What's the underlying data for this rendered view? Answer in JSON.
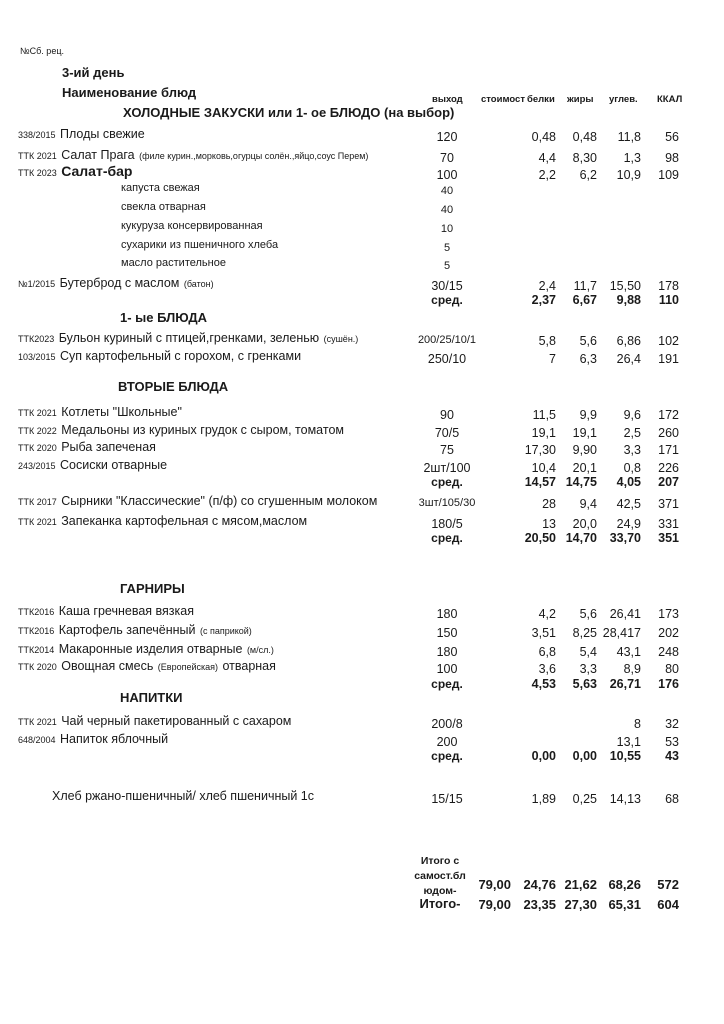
{
  "header": {
    "recipe_no_label": "№Сб. рец.",
    "day": "3-ий день",
    "dish_name_label": "Наименование  блюд",
    "columns": [
      "выход",
      "стоимост",
      "белки",
      "жиры",
      "углев.",
      "ККАЛ"
    ]
  },
  "rows": [
    {
      "type": "section",
      "name": "ХОЛОДНЫЕ  ЗАКУСКИ  или 1- ое БЛЮДО (на выбор)"
    },
    {
      "type": "item",
      "code": "338/2015",
      "name": "Плоды свежие",
      "output": "120",
      "protein": "0,48",
      "fat": "0,48",
      "carbs": "11,8",
      "kcal": "56"
    },
    {
      "type": "item",
      "code": "ТТК 2021",
      "name": "Салат Прага",
      "note": "(филе курин.,морковь,огурцы солён.,яйцо,соус Перем)",
      "output": "70",
      "protein": "4,4",
      "fat": "8,30",
      "carbs": "1,3",
      "kcal": "98"
    },
    {
      "type": "item",
      "code": "ТТК 2023",
      "name": "Салат-бар",
      "bold": true,
      "output": "100",
      "protein": "2,2",
      "fat": "6,2",
      "carbs": "10,9",
      "kcal": "109"
    },
    {
      "type": "sub",
      "name": "капуста свежая",
      "output": "40"
    },
    {
      "type": "sub",
      "name": "свекла отварная",
      "output": "40"
    },
    {
      "type": "sub",
      "name": "кукуруза консервированная",
      "output": "10"
    },
    {
      "type": "sub",
      "name": "сухарики из пшеничного хлеба",
      "output": "5"
    },
    {
      "type": "sub",
      "name": "масло растительное",
      "output": "5"
    },
    {
      "type": "item",
      "code": "№1/2015",
      "name": "Бутерброд с маслом",
      "note": "(батон)",
      "output": "30/15",
      "protein": "2,4",
      "fat": "11,7",
      "carbs": "15,50",
      "kcal": "178"
    },
    {
      "type": "avg",
      "output": "сред.",
      "protein": "2,37",
      "fat": "6,67",
      "carbs": "9,88",
      "kcal": "110"
    },
    {
      "type": "section",
      "name": "1- ые БЛЮДА"
    },
    {
      "type": "item",
      "code": "ТТК2023",
      "name": "Бульон куриный с птицей,гренками, зеленью",
      "note": "(сушён.)",
      "output": "200/25/10/1",
      "protein": "5,8",
      "fat": "5,6",
      "carbs": "6,86",
      "kcal": "102"
    },
    {
      "type": "item",
      "code": "103/2015",
      "name": "Суп картофельный с горохом, с гренками",
      "output": "250/10",
      "protein": "7",
      "fat": "6,3",
      "carbs": "26,4",
      "kcal": "191"
    },
    {
      "type": "section",
      "name": "ВТОРЫЕ  БЛЮДА"
    },
    {
      "type": "item",
      "code": "ТТК 2021",
      "name": "Котлеты \"Школьные\"",
      "output": "90",
      "protein": "11,5",
      "fat": "9,9",
      "carbs": "9,6",
      "kcal": "172"
    },
    {
      "type": "item",
      "code": "ТТК 2022",
      "name": "Медальоны из куриных грудок с сыром, томатом",
      "output": "70/5",
      "protein": "19,1",
      "fat": "19,1",
      "carbs": "2,5",
      "kcal": "260"
    },
    {
      "type": "item",
      "code": "ТТК 2020",
      "name": "Рыба запеченая",
      "output": "75",
      "protein": "17,30",
      "fat": "9,90",
      "carbs": "3,3",
      "kcal": "171"
    },
    {
      "type": "item",
      "code": "243/2015",
      "name": "Сосиски отварные",
      "output": "2шт/100",
      "protein": "10,4",
      "fat": "20,1",
      "carbs": "0,8",
      "kcal": "226"
    },
    {
      "type": "avg",
      "output": "сред.",
      "protein": "14,57",
      "fat": "14,75",
      "carbs": "4,05",
      "kcal": "207"
    },
    {
      "type": "item",
      "code": "ТТК 2017",
      "name": "Сырники \"Классические\" (п/ф) со сгушенным молоком",
      "output": "3шт/105/30",
      "protein": "28",
      "fat": "9,4",
      "carbs": "42,5",
      "kcal": "371"
    },
    {
      "type": "item",
      "code": "ТТК 2021",
      "name": "Запеканка картофельная с мясом,маслом",
      "output": "180/5",
      "protein": "13",
      "fat": "20,0",
      "carbs": "24,9",
      "kcal": "331"
    },
    {
      "type": "avg",
      "output": "сред.",
      "protein": "20,50",
      "fat": "14,70",
      "carbs": "33,70",
      "kcal": "351"
    },
    {
      "type": "section",
      "name": "ГАРНИРЫ"
    },
    {
      "type": "item",
      "code": "ТТК2016",
      "name": "Каша гречневая вязкая",
      "output": "180",
      "protein": "4,2",
      "fat": "5,6",
      "carbs": "26,41",
      "kcal": "173"
    },
    {
      "type": "item",
      "code": "ТТК2016",
      "name": "Картофель запечённый",
      "note": "(с паприкой)",
      "output": "150",
      "protein": "3,51",
      "fat": "8,25",
      "carbs": "28,417",
      "kcal": "202"
    },
    {
      "type": "item",
      "code": "ТТК2014",
      "name": "Макаронные изделия отварные",
      "note": "(м/сл.)",
      "output": "180",
      "protein": "6,8",
      "fat": "5,4",
      "carbs": "43,1",
      "kcal": "248"
    },
    {
      "type": "item",
      "code": "ТТК 2020",
      "name": "Овощная смесь",
      "note": "(Европейская)",
      "suffix": "отварная",
      "output": "100",
      "protein": "3,6",
      "fat": "3,3",
      "carbs": "8,9",
      "kcal": "80"
    },
    {
      "type": "avg",
      "output": "сред.",
      "protein": "4,53",
      "fat": "5,63",
      "carbs": "26,71",
      "kcal": "176"
    },
    {
      "type": "section",
      "name": "НАПИТКИ"
    },
    {
      "type": "item",
      "code": "ТТК 2021",
      "name": "Чай черный пакетированный с сахаром",
      "output": "200/8",
      "carbs": "8",
      "kcal": "32"
    },
    {
      "type": "item",
      "code": "648/2004",
      "name": "Напиток яблочный",
      "output": "200",
      "carbs": "13,1",
      "kcal": "53"
    },
    {
      "type": "avg",
      "output": "сред.",
      "protein": "0,00",
      "fat": "0,00",
      "carbs": "10,55",
      "kcal": "43"
    },
    {
      "type": "item",
      "name": "Хлеб ржано-пшеничный/ хлеб пшеничный 1с",
      "indent": true,
      "output": "15/15",
      "protein": "1,89",
      "fat": "0,25",
      "carbs": "14,13",
      "kcal": "68"
    }
  ],
  "totals": [
    {
      "label_lines": [
        "Итого с",
        "самост.бл",
        "юдом-"
      ],
      "cost": "79,00",
      "protein": "24,76",
      "fat": "21,62",
      "carbs": "68,26",
      "kcal": "572"
    },
    {
      "label_lines": [
        "Итого-"
      ],
      "cost": "79,00",
      "protein": "23,35",
      "fat": "27,30",
      "carbs": "65,31",
      "kcal": "604"
    }
  ]
}
